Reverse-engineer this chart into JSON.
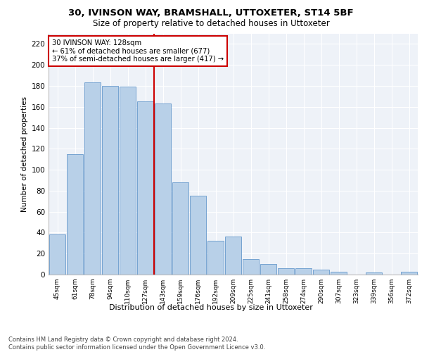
{
  "title_line1": "30, IVINSON WAY, BRAMSHALL, UTTOXETER, ST14 5BF",
  "title_line2": "Size of property relative to detached houses in Uttoxeter",
  "xlabel": "Distribution of detached houses by size in Uttoxeter",
  "ylabel": "Number of detached properties",
  "categories": [
    "45sqm",
    "61sqm",
    "78sqm",
    "94sqm",
    "110sqm",
    "127sqm",
    "143sqm",
    "159sqm",
    "176sqm",
    "192sqm",
    "209sqm",
    "225sqm",
    "241sqm",
    "258sqm",
    "274sqm",
    "290sqm",
    "307sqm",
    "323sqm",
    "339sqm",
    "356sqm",
    "372sqm"
  ],
  "values": [
    38,
    115,
    183,
    180,
    179,
    165,
    163,
    88,
    75,
    32,
    36,
    15,
    10,
    6,
    6,
    5,
    3,
    0,
    2,
    0,
    3
  ],
  "bar_color": "#b8d0e8",
  "bar_edge_color": "#6699cc",
  "vline_color": "#cc0000",
  "annotation_text": "30 IVINSON WAY: 128sqm\n← 61% of detached houses are smaller (677)\n37% of semi-detached houses are larger (417) →",
  "annotation_box_color": "#ffffff",
  "annotation_box_edge_color": "#cc0000",
  "ylim": [
    0,
    230
  ],
  "yticks": [
    0,
    20,
    40,
    60,
    80,
    100,
    120,
    140,
    160,
    180,
    200,
    220
  ],
  "footer": "Contains HM Land Registry data © Crown copyright and database right 2024.\nContains public sector information licensed under the Open Government Licence v3.0.",
  "bg_color": "#eef2f8",
  "grid_color": "#ffffff",
  "fig_bg": "#ffffff"
}
